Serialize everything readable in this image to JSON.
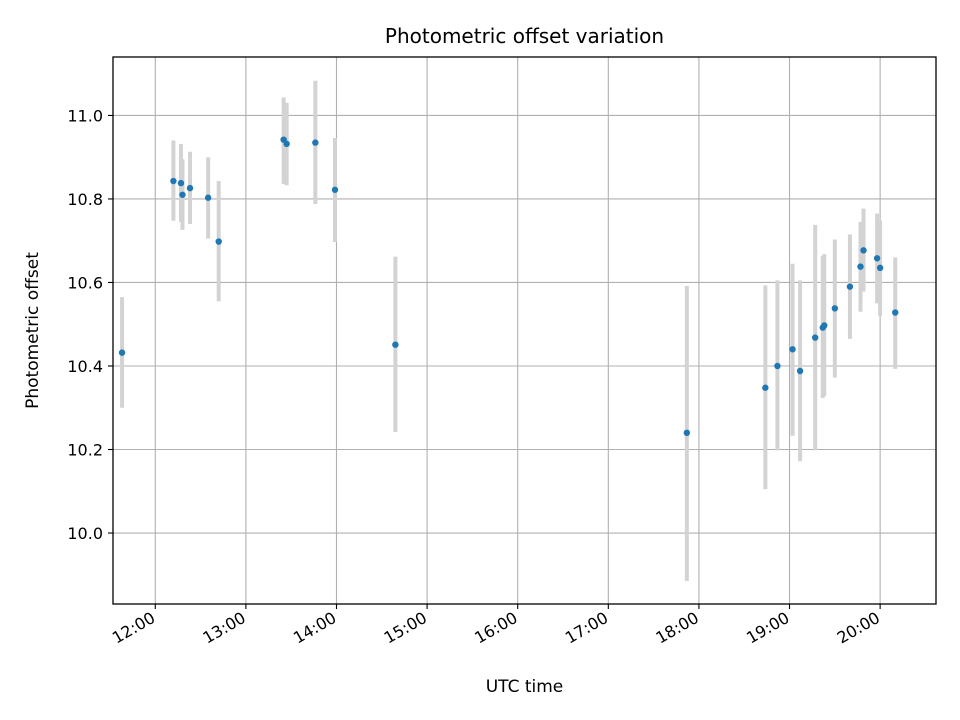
{
  "chart_data": {
    "type": "scatter",
    "title": "Photometric offset variation",
    "xlabel": "UTC time",
    "ylabel": "Photometric offset",
    "x_is_time": true,
    "xlim": [
      "11:32",
      "20:37"
    ],
    "ylim": [
      9.83,
      11.14
    ],
    "xticks": [
      "12:00",
      "13:00",
      "14:00",
      "15:00",
      "16:00",
      "17:00",
      "18:00",
      "19:00",
      "20:00"
    ],
    "yticks": [
      "10.0",
      "10.2",
      "10.4",
      "10.6",
      "10.8",
      "11.0"
    ],
    "grid": true,
    "colors": {
      "point": "#1f77b4",
      "errorbar": "#d3d3d3",
      "grid": "#b0b0b0"
    },
    "series": [
      {
        "points": [
          {
            "x": "11:38",
            "y": 10.432,
            "ylo": 10.3,
            "yhi": 10.565
          },
          {
            "x": "12:12",
            "y": 10.843,
            "ylo": 10.748,
            "yhi": 10.94
          },
          {
            "x": "12:17",
            "y": 10.838,
            "ylo": 10.745,
            "yhi": 10.932
          },
          {
            "x": "12:18",
            "y": 10.81,
            "ylo": 10.726,
            "yhi": 10.895
          },
          {
            "x": "12:23",
            "y": 10.826,
            "ylo": 10.74,
            "yhi": 10.913
          },
          {
            "x": "12:35",
            "y": 10.803,
            "ylo": 10.705,
            "yhi": 10.9
          },
          {
            "x": "12:42",
            "y": 10.698,
            "ylo": 10.555,
            "yhi": 10.843
          },
          {
            "x": "13:25",
            "y": 10.942,
            "ylo": 10.836,
            "yhi": 11.043
          },
          {
            "x": "13:27",
            "y": 10.932,
            "ylo": 10.833,
            "yhi": 11.03
          },
          {
            "x": "13:46",
            "y": 10.935,
            "ylo": 10.788,
            "yhi": 11.083
          },
          {
            "x": "13:59",
            "y": 10.822,
            "ylo": 10.697,
            "yhi": 10.946
          },
          {
            "x": "14:39",
            "y": 10.451,
            "ylo": 10.242,
            "yhi": 10.662
          },
          {
            "x": "17:52",
            "y": 10.24,
            "ylo": 9.885,
            "yhi": 10.592
          },
          {
            "x": "18:44",
            "y": 10.348,
            "ylo": 10.105,
            "yhi": 10.593
          },
          {
            "x": "18:52",
            "y": 10.4,
            "ylo": 10.198,
            "yhi": 10.605
          },
          {
            "x": "19:02",
            "y": 10.44,
            "ylo": 10.233,
            "yhi": 10.645
          },
          {
            "x": "19:07",
            "y": 10.388,
            "ylo": 10.172,
            "yhi": 10.605
          },
          {
            "x": "19:17",
            "y": 10.468,
            "ylo": 10.198,
            "yhi": 10.738
          },
          {
            "x": "19:22",
            "y": 10.492,
            "ylo": 10.323,
            "yhi": 10.663
          },
          {
            "x": "19:23",
            "y": 10.497,
            "ylo": 10.328,
            "yhi": 10.668
          },
          {
            "x": "19:30",
            "y": 10.538,
            "ylo": 10.372,
            "yhi": 10.703
          },
          {
            "x": "19:40",
            "y": 10.59,
            "ylo": 10.465,
            "yhi": 10.715
          },
          {
            "x": "19:47",
            "y": 10.638,
            "ylo": 10.53,
            "yhi": 10.745
          },
          {
            "x": "19:49",
            "y": 10.677,
            "ylo": 10.578,
            "yhi": 10.777
          },
          {
            "x": "19:58",
            "y": 10.658,
            "ylo": 10.55,
            "yhi": 10.765
          },
          {
            "x": "20:00",
            "y": 10.635,
            "ylo": 10.52,
            "yhi": 10.748
          },
          {
            "x": "20:10",
            "y": 10.528,
            "ylo": 10.393,
            "yhi": 10.66
          }
        ]
      }
    ]
  }
}
